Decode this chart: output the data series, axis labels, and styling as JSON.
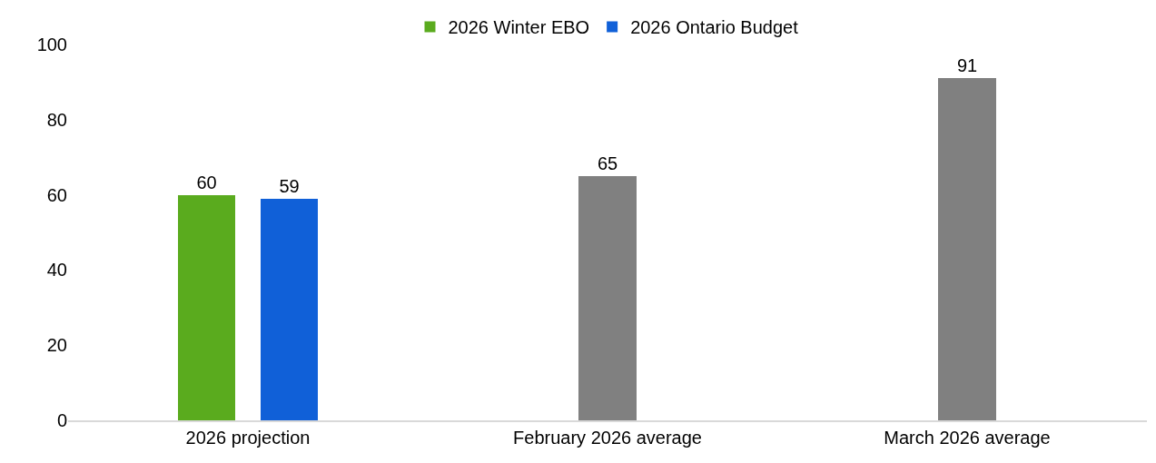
{
  "chart_data": {
    "type": "bar",
    "categories": [
      "2026 projection",
      "February 2026 average",
      "March 2026 average"
    ],
    "series": [
      {
        "name": "2026 Winter EBO",
        "color": "#5aab1e",
        "values": [
          60,
          null,
          null
        ]
      },
      {
        "name": "2026 Ontario Budget",
        "color": "#1060d8",
        "values": [
          59,
          null,
          null
        ]
      },
      {
        "color": "#808080",
        "values": [
          null,
          65,
          91
        ]
      }
    ],
    "ylim": [
      0,
      100
    ],
    "yticks": [
      0,
      20,
      40,
      60,
      80,
      100
    ],
    "grid": false,
    "legend": "top",
    "data_labels": true
  }
}
